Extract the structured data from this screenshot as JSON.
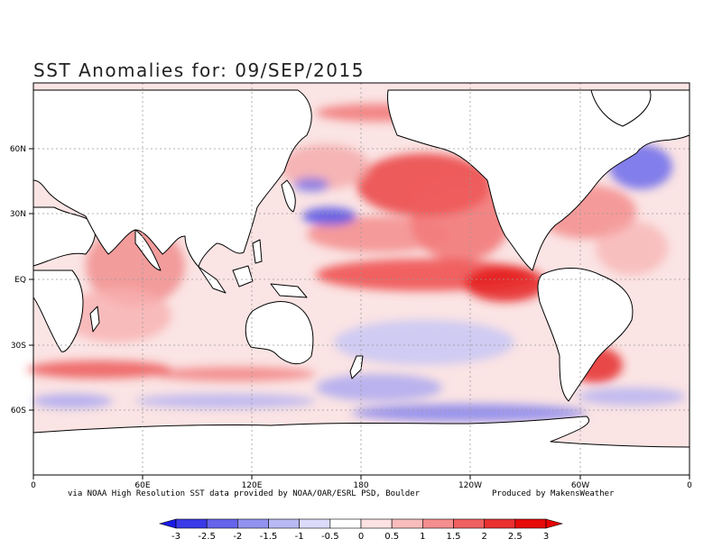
{
  "title": "SST Anomalies for: 09/SEP/2015",
  "credits": {
    "source": "via NOAA High Resolution SST data provided by NOAA/OAR/ESRL PSD, Boulder",
    "producer": "Produced by MakensWeather"
  },
  "map": {
    "projection": "cylindrical-equidistant",
    "lon_ticks": [
      "0",
      "60E",
      "120E",
      "180",
      "120W",
      "60W",
      "0"
    ],
    "lat_ticks": [
      "60N",
      "30N",
      "EQ",
      "30S",
      "60S"
    ],
    "land_color": "#ffffff",
    "grid": "dotted"
  },
  "colorbar": {
    "labels": [
      "-3",
      "-2.5",
      "-2",
      "-1.5",
      "-1",
      "-0.5",
      "0",
      "0.5",
      "1",
      "1.5",
      "2",
      "2.5",
      "3"
    ],
    "colors": [
      "#1a1ae6",
      "#3a3ae8",
      "#6464ec",
      "#9292f0",
      "#b8b8f4",
      "#dcdcfa",
      "#ffffff",
      "#fce2e2",
      "#f9bcbc",
      "#f58e8e",
      "#f06060",
      "#ea3030",
      "#e60a0a",
      "#e60000"
    ]
  }
}
